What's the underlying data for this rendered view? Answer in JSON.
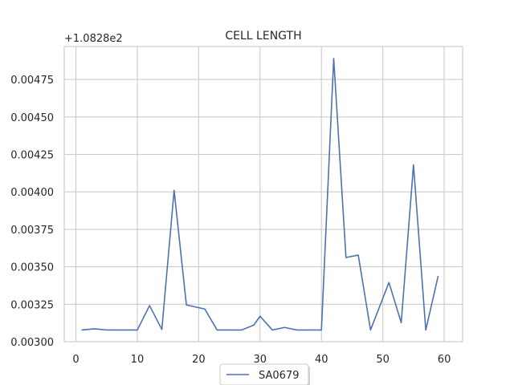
{
  "chart_data": {
    "type": "line",
    "title": "CELL LENGTH",
    "xlabel": "",
    "ylabel": "",
    "offset_label": "+1.0828e2",
    "xlim": [
      -1.9,
      63.0
    ],
    "ylim": [
      0.003,
      0.00497
    ],
    "x_ticks": [
      0,
      10,
      20,
      30,
      40,
      50,
      60
    ],
    "x_tick_labels": [
      "0",
      "10",
      "20",
      "30",
      "40",
      "50",
      "60"
    ],
    "y_ticks": [
      0.003,
      0.00325,
      0.0035,
      0.00375,
      0.004,
      0.00425,
      0.0045,
      0.00475
    ],
    "y_tick_labels": [
      "0.00300",
      "0.00325",
      "0.00350",
      "0.00375",
      "0.00400",
      "0.00425",
      "0.00450",
      "0.00475"
    ],
    "grid": true,
    "legend_position": "bottom-center",
    "series": [
      {
        "name": "SA0679",
        "color": "#4c72b0",
        "x": [
          1,
          3,
          5,
          8,
          10,
          12,
          14,
          16,
          18,
          21,
          23,
          25,
          27,
          29,
          30,
          32,
          34,
          36,
          38,
          40,
          42,
          44,
          46,
          48,
          51,
          53,
          55,
          57,
          59
        ],
        "y": [
          0.003078,
          0.003086,
          0.003078,
          0.003078,
          0.003078,
          0.003241,
          0.003082,
          0.00401,
          0.003245,
          0.003218,
          0.003078,
          0.003078,
          0.003078,
          0.003111,
          0.00317,
          0.003078,
          0.003095,
          0.003078,
          0.003078,
          0.003078,
          0.00489,
          0.003562,
          0.003578,
          0.003078,
          0.003395,
          0.003127,
          0.00418,
          0.003078,
          0.003435
        ]
      }
    ]
  }
}
